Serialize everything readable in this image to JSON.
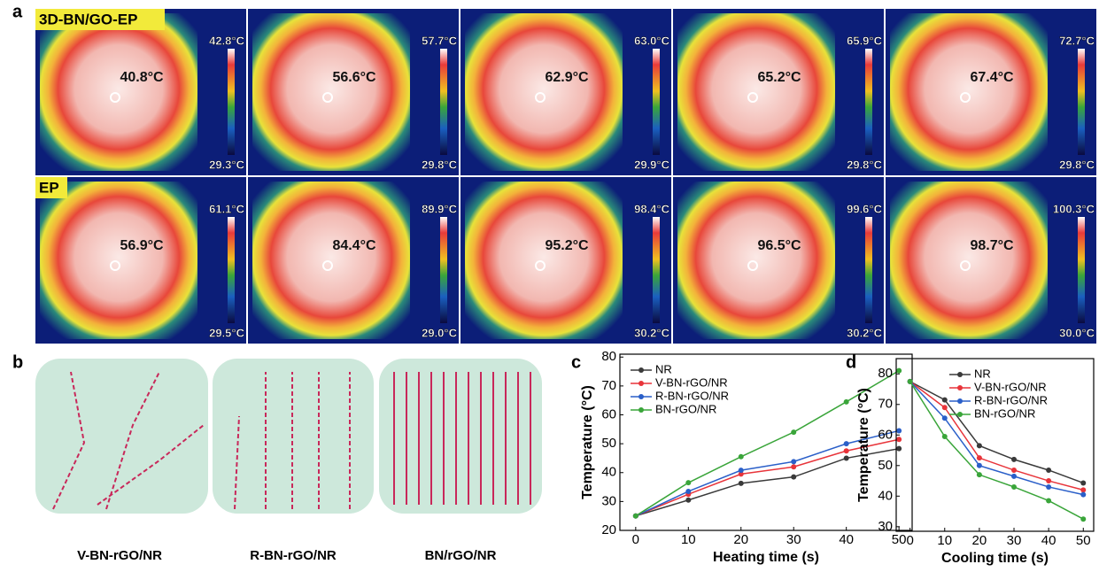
{
  "panel_labels": [
    "a",
    "b",
    "c",
    "d"
  ],
  "thermal": {
    "rows": [
      {
        "label": "3D-BN/GO-EP",
        "cells": [
          {
            "center": "40.8°C",
            "max": "42.8°C",
            "min": "29.3°C"
          },
          {
            "center": "56.6°C",
            "max": "57.7°C",
            "min": "29.8°C"
          },
          {
            "center": "62.9°C",
            "max": "63.0°C",
            "min": "29.9°C"
          },
          {
            "center": "65.2°C",
            "max": "65.9°C",
            "min": "29.8°C"
          },
          {
            "center": "67.4°C",
            "max": "72.7°C",
            "min": "29.8°C"
          }
        ]
      },
      {
        "label": "EP",
        "cells": [
          {
            "center": "56.9°C",
            "max": "61.1°C",
            "min": "29.5°C"
          },
          {
            "center": "84.4°C",
            "max": "89.9°C",
            "min": "29.0°C"
          },
          {
            "center": "95.2°C",
            "max": "98.4°C",
            "min": "30.2°C"
          },
          {
            "center": "96.5°C",
            "max": "99.6°C",
            "min": "30.2°C"
          },
          {
            "center": "98.7°C",
            "max": "100.3°C",
            "min": "30.0°C"
          }
        ]
      }
    ]
  },
  "schematic": {
    "labels": [
      "V-BN-rGO/NR",
      "R-BN-rGO/NR",
      "BN/rGO/NR"
    ]
  },
  "chart_data": [
    {
      "type": "line",
      "xlabel": "Heating time (s)",
      "ylabel": "Temperature (°C)",
      "x": [
        0,
        10,
        20,
        30,
        40,
        50
      ],
      "xlim": [
        -3,
        52.5
      ],
      "xticks": [
        0,
        10,
        20,
        30,
        40,
        50
      ],
      "ylim": [
        20,
        81
      ],
      "yticks": [
        20,
        30,
        40,
        50,
        60,
        70,
        80
      ],
      "legend": "upper left",
      "series": [
        {
          "name": "NR",
          "color": "#3a3a3a",
          "values": [
            25,
            30.5,
            36.3,
            38.5,
            45,
            48.3
          ]
        },
        {
          "name": "V-BN-rGO/NR",
          "color": "#e8343a",
          "values": [
            25,
            32.5,
            39.5,
            42,
            47.5,
            51.5
          ]
        },
        {
          "name": "R-BN-rGO/NR",
          "color": "#2a5fc9",
          "values": [
            25,
            33.5,
            40.8,
            43.8,
            50,
            54.5
          ]
        },
        {
          "name": "BN-rGO/NR",
          "color": "#3aa53a",
          "values": [
            25,
            36.5,
            45.5,
            54,
            64.5,
            75.3
          ]
        }
      ]
    },
    {
      "type": "line",
      "xlabel": "Cooling time (s)",
      "ylabel": "Temperature (°C)",
      "x": [
        0,
        10,
        20,
        30,
        40,
        50
      ],
      "xlim": [
        -4,
        53
      ],
      "xticks": [
        0,
        10,
        20,
        30,
        40,
        50
      ],
      "ylim": [
        28.5,
        85
      ],
      "yticks": [
        30,
        40,
        50,
        60,
        70,
        80
      ],
      "legend": "upper right",
      "series": [
        {
          "name": "NR",
          "color": "#3a3a3a",
          "values": [
            77.5,
            71.5,
            56.5,
            52,
            48.5,
            44.3
          ]
        },
        {
          "name": "V-BN-rGO/NR",
          "color": "#e8343a",
          "values": [
            77.5,
            69,
            52.5,
            48.5,
            45,
            42
          ]
        },
        {
          "name": "R-BN-rGO/NR",
          "color": "#2a5fc9",
          "values": [
            77.5,
            65.5,
            50,
            46.5,
            43,
            40.5
          ]
        },
        {
          "name": "BN-rGO/NR",
          "color": "#3aa53a",
          "values": [
            77.5,
            59.5,
            47,
            43,
            38.5,
            32.5
          ]
        }
      ]
    }
  ]
}
